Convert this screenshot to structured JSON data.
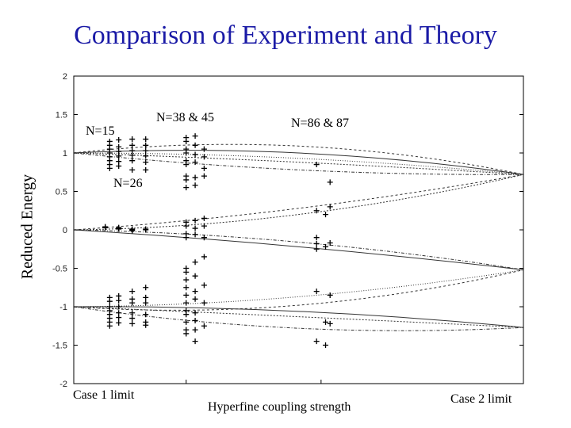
{
  "chart_data": {
    "type": "scatter",
    "title": "Comparison of Experiment and Theory",
    "ylabel": "Reduced Energy",
    "xlabel": "Hyperfine coupling strength",
    "ylim": [
      -2,
      2
    ],
    "yticks": [
      2,
      1.5,
      1,
      0.5,
      0,
      -0.5,
      -1,
      -1.5,
      -2
    ],
    "ytick_labels": [
      "2",
      "1.5",
      "1",
      "0.5",
      "0",
      "-0.5",
      "-1",
      "-1.5",
      "-2"
    ],
    "xlim": [
      0,
      1
    ],
    "x_limit_labels": {
      "left": "Case 1 limit",
      "right": "Case 2 limit"
    },
    "annotations": [
      "N=15",
      "N=38 & 45",
      "N=86 & 87",
      "N=26"
    ],
    "grid": false,
    "theory_curves": [
      {
        "start": 1,
        "end": 0.72,
        "mid": 1.09
      },
      {
        "start": 1,
        "end": 0.72,
        "mid": 1.0
      },
      {
        "start": 1,
        "end": 0.72,
        "mid": 0.88
      },
      {
        "start": 1,
        "end": 0.72,
        "mid": 0.78
      },
      {
        "start": 1,
        "end": 0.72,
        "mid": 0.93
      },
      {
        "start": 0,
        "end": 0.72,
        "mid": 0.28
      },
      {
        "start": 0,
        "end": -0.52,
        "mid": -0.22
      },
      {
        "start": 0,
        "end": 0.72,
        "mid": 0.2
      },
      {
        "start": 0,
        "end": -0.52,
        "mid": -0.16
      },
      {
        "start": -1,
        "end": -0.52,
        "mid": -0.87
      },
      {
        "start": -1,
        "end": -0.52,
        "mid": -0.98
      },
      {
        "start": -1,
        "end": -1.27,
        "mid": -1.06
      },
      {
        "start": -1,
        "end": -1.27,
        "mid": -1.13
      },
      {
        "start": -1,
        "end": -1.27,
        "mid": -1.28
      }
    ],
    "experiment_groups": [
      {
        "x": 0.08,
        "values": [
          1.15,
          1.1,
          1.05,
          1.0,
          0.95,
          0.9,
          0.85,
          0.8
        ]
      },
      {
        "x": 0.1,
        "values": [
          1.17,
          1.08,
          1.02,
          0.96,
          0.89,
          0.83
        ]
      },
      {
        "x": 0.13,
        "values": [
          1.18,
          1.1,
          1.03,
          0.97,
          0.9,
          0.78
        ]
      },
      {
        "x": 0.16,
        "values": [
          1.18,
          1.1,
          1.03,
          0.96,
          0.88,
          0.78
        ]
      },
      {
        "x": 0.08,
        "values": [
          -0.88,
          -0.93,
          -1.0,
          -1.05,
          -1.1,
          -1.15,
          -1.2,
          -1.25
        ]
      },
      {
        "x": 0.1,
        "values": [
          -0.86,
          -0.92,
          -1.0,
          -1.08,
          -1.14,
          -1.21
        ]
      },
      {
        "x": 0.13,
        "values": [
          -0.8,
          -0.9,
          -0.95,
          -1.08,
          -1.15,
          -1.22
        ]
      },
      {
        "x": 0.16,
        "values": [
          -0.75,
          -0.88,
          -0.95,
          -1.1,
          -1.2,
          -1.24
        ]
      },
      {
        "x": 0.07,
        "values": [
          0.03,
          0.04,
          0.03
        ]
      },
      {
        "x": 0.1,
        "values": [
          0.03,
          0.02,
          0.01
        ]
      },
      {
        "x": 0.13,
        "values": [
          0.0,
          0.01,
          -0.01
        ]
      },
      {
        "x": 0.16,
        "values": [
          0.0,
          0.01
        ]
      },
      {
        "x": 0.25,
        "values": [
          1.2,
          1.15,
          1.05,
          1.0,
          0.9,
          0.85,
          0.7,
          0.65,
          0.55,
          0.1,
          0.05,
          -0.05,
          -0.1,
          -0.5,
          -0.55,
          -0.65,
          -0.75,
          -0.85,
          -0.95,
          -1.05,
          -1.1,
          -1.2,
          -1.3,
          -1.35
        ]
      },
      {
        "x": 0.27,
        "values": [
          1.22,
          1.1,
          0.98,
          0.88,
          0.68,
          0.58,
          0.12,
          0.02,
          -0.06,
          -0.42,
          -0.6,
          -0.8,
          -0.9,
          -1.08,
          -1.18,
          -1.3,
          -1.45
        ]
      },
      {
        "x": 0.29,
        "values": [
          1.05,
          0.95,
          0.8,
          0.7,
          0.15,
          0.05,
          -0.1,
          -0.35,
          -0.72,
          -0.95,
          -1.25
        ]
      },
      {
        "x": 0.54,
        "values": [
          0.85,
          0.25,
          -0.1,
          -0.18,
          -0.25,
          -0.8,
          -1.45
        ]
      },
      {
        "x": 0.56,
        "values": [
          0.2,
          -0.22,
          -1.2,
          -1.5
        ]
      },
      {
        "x": 0.57,
        "values": [
          0.62,
          0.3,
          -0.17,
          -0.85,
          -1.22
        ]
      }
    ]
  }
}
